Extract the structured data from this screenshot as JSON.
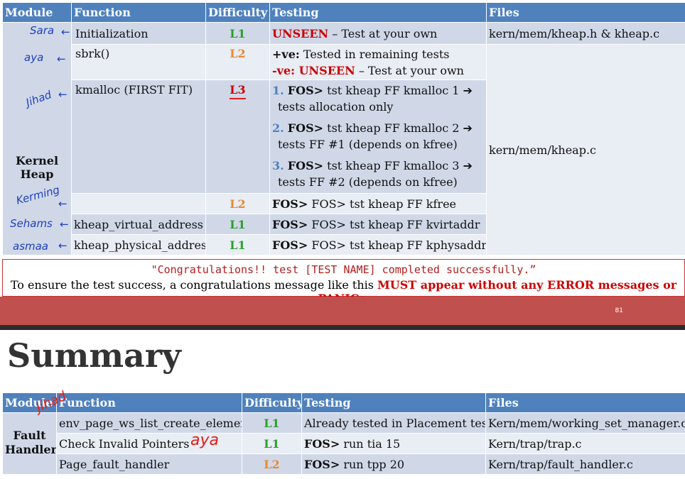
{
  "table1": {
    "headers": [
      "Module",
      "Function",
      "Difficulty",
      "Testing",
      "Files"
    ],
    "module": [
      "Kernel",
      "Heap"
    ],
    "rows": [
      {
        "function": "Initialization",
        "level": "L1",
        "testing_red": "UNSEEN",
        "testing_text": " – Test at your own",
        "file": "kern/mem/kheap.h & kheap.c"
      },
      {
        "function": "sbrk()",
        "level": "L2",
        "line1_bold": "+ve:",
        "line1_text": " Tested in remaining tests",
        "line2_red": "-ve: UNSEEN",
        "line2_text": " – Test at your own",
        "file": "kern/mem/kheap.c"
      },
      {
        "function": "kmalloc (FIRST FIT)",
        "level": "L3",
        "items": [
          {
            "num": "1.",
            "bold": "FOS>",
            "text": " tst kheap FF kmalloc 1 ➔",
            "sub": "tests allocation only"
          },
          {
            "num": "2.",
            "bold": "FOS>",
            "text": " tst kheap FF kmalloc 2 ➔",
            "sub": "tests FF #1 (depends on kfree)"
          },
          {
            "num": "3.",
            "bold": "FOS>",
            "text": " tst kheap FF kmalloc 3 ➔",
            "sub": "tests FF #2 (depends on kfree)"
          }
        ]
      },
      {
        "function": "kfree",
        "level": "L2",
        "bold": "FOS>",
        "text": " FOS> tst kheap FF kfree"
      },
      {
        "function": "kheap_virtual_address",
        "level": "L1",
        "bold": "FOS>",
        "text": " FOS> tst kheap FF kvirtaddr"
      },
      {
        "function": "kheap_physical_address",
        "level": "L1",
        "bold": "FOS>",
        "text": " FOS> tst kheap FF kphysaddr"
      }
    ]
  },
  "note": {
    "message": "\"Congratulations!! test [TEST NAME] completed successfully.”",
    "text": "To ensure the test success, a congratulations message like this ",
    "emphasis": "MUST appear without any ERROR messages or PANICs",
    "end": "."
  },
  "slide_number": "81",
  "summary_title": "Summary",
  "table2": {
    "headers": [
      "Module",
      "Function",
      "Difficulty",
      "Testing",
      "Files"
    ],
    "module": [
      "Fault",
      "Handler"
    ],
    "rows": [
      {
        "function": "env_page_ws_list_create_element",
        "level": "L1",
        "bold": "",
        "text": "Already tested in Placement test",
        "file": "Kern/mem/working_set_manager.c"
      },
      {
        "function": "Check Invalid Pointers",
        "level": "L1",
        "bold": "FOS>",
        "text": " run tia 15",
        "file": "Kern/trap/trap.c"
      },
      {
        "function": "Page_fault_handler",
        "level": "L2",
        "bold": "FOS>",
        "text": " run tpp 20",
        "file": "Kern/trap/fault_handler.c"
      }
    ]
  },
  "handwriting": {
    "sara": "Sara",
    "aya": "aya",
    "jihad": "Jihad",
    "kerming": "Kerming",
    "sehams": "Sehams",
    "asmaa": "asmaa",
    "jihad2": "Jihad",
    "aya2": "aya"
  },
  "colors": {
    "header": "#4f81bd",
    "row_dark": "#d0d8e8",
    "row_light": "#e9edf4",
    "band": "#c0504d",
    "red": "#cc0000",
    "green": "#2aa02a",
    "orange": "#e8892f"
  }
}
